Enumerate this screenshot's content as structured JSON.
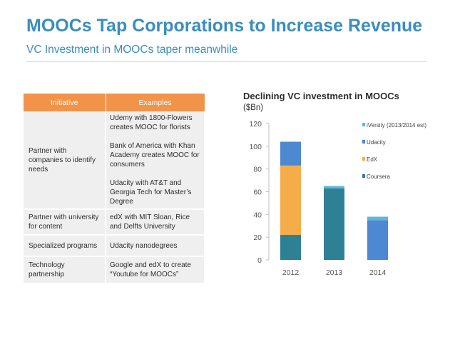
{
  "header": {
    "title": "MOOCs Tap Corporations to Increase Revenue",
    "subtitle": "VC Investment in MOOCs taper meanwhile"
  },
  "table": {
    "headers": [
      "Initiative",
      "Examples"
    ],
    "rows": [
      {
        "initiative": "Partner with companies to identify needs",
        "examples": [
          "Udemy with 1800-Flowers creates MOOC for florists",
          "Bank of America with Khan Academy creates MOOC for consumers",
          "Udacity with AT&T and Georgia Tech for Master’s Degree"
        ]
      },
      {
        "initiative": "Partner with university for content",
        "examples": [
          "edX with MIT Sloan, Rice and Delfts University"
        ]
      },
      {
        "initiative": "Specialized programs",
        "examples": [
          "Udacity nanodegrees"
        ]
      },
      {
        "initiative": "Technology partnership",
        "examples": [
          "Google and edX to create “Youtube for MOOCs”"
        ]
      }
    ]
  },
  "colors": {
    "title": "#3a8dbf",
    "table_header": "#f2934a",
    "table_cell": "#efefef"
  },
  "chart_data": {
    "type": "bar",
    "stacked": true,
    "title": "Declining VC investment in MOOCs",
    "ylabel": "($Bn)",
    "xlabel": "",
    "categories": [
      "2012",
      "2013",
      "2014"
    ],
    "ylim": [
      0,
      120
    ],
    "yticks": [
      0,
      20,
      40,
      60,
      80,
      100,
      120
    ],
    "grid": false,
    "legend_position": "right",
    "series": [
      {
        "name": "Coursera",
        "color": "#2e8095",
        "values": [
          22,
          63,
          0
        ]
      },
      {
        "name": "EdX",
        "color": "#f5ad4b",
        "values": [
          61,
          0,
          0
        ]
      },
      {
        "name": "Udacity",
        "color": "#4d88d2",
        "values": [
          21,
          0,
          35
        ]
      },
      {
        "name": "iVersity (2013/2014 est)",
        "color": "#5db8d8",
        "values": [
          0,
          2,
          3
        ]
      }
    ]
  }
}
